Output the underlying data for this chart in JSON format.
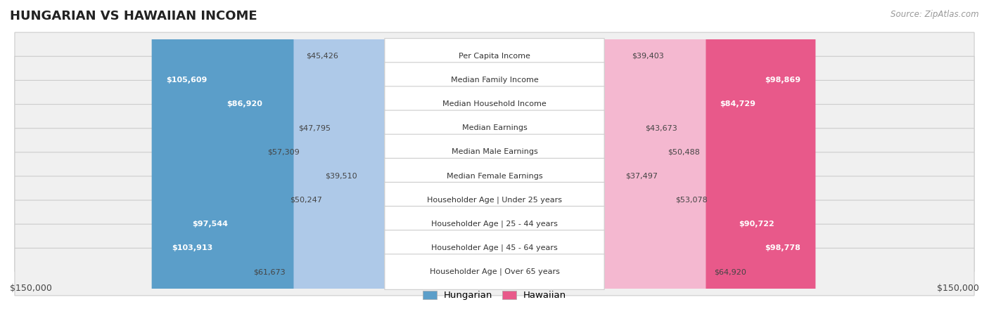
{
  "title": "HUNGARIAN VS HAWAIIAN INCOME",
  "source": "Source: ZipAtlas.com",
  "categories": [
    "Per Capita Income",
    "Median Family Income",
    "Median Household Income",
    "Median Earnings",
    "Median Male Earnings",
    "Median Female Earnings",
    "Householder Age | Under 25 years",
    "Householder Age | 25 - 44 years",
    "Householder Age | 45 - 64 years",
    "Householder Age | Over 65 years"
  ],
  "hungarian_values": [
    45426,
    105609,
    86920,
    47795,
    57309,
    39510,
    50247,
    97544,
    103913,
    61673
  ],
  "hawaiian_values": [
    39403,
    98869,
    84729,
    43673,
    50488,
    37497,
    53078,
    90722,
    98778,
    64920
  ],
  "hungarian_color_light": "#aec9e8",
  "hungarian_color_dark": "#5b9ec9",
  "hawaiian_color_light": "#f4b8d0",
  "hawaiian_color_dark": "#e8598a",
  "max_value": 150000,
  "bar_height": 0.58,
  "background_color": "#ffffff",
  "row_bg_color": "#f0f0f0",
  "row_border_color": "#cccccc",
  "label_bg_color": "#ffffff",
  "label_border_color": "#cccccc",
  "hung_threshold": 75000,
  "haw_threshold": 75000,
  "legend_hungarian": "Hungarian",
  "legend_hawaiian": "Hawaiian",
  "title_fontsize": 13,
  "source_fontsize": 8.5,
  "cat_fontsize": 8,
  "val_fontsize": 8
}
